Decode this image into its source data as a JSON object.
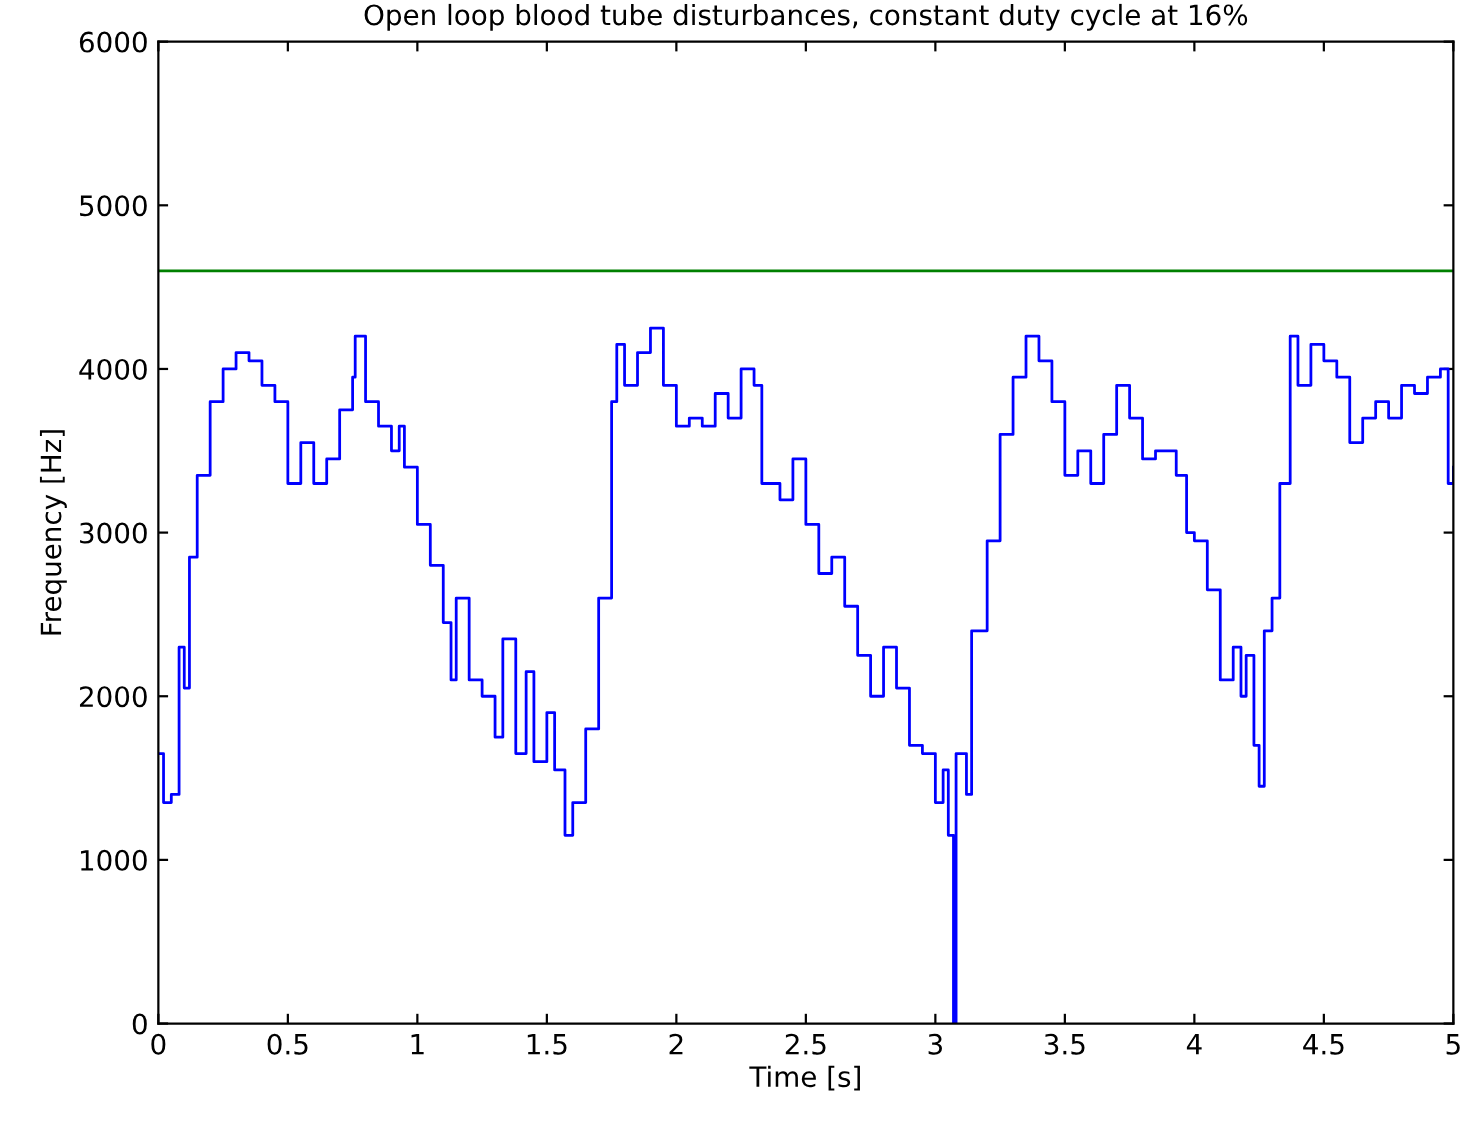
{
  "chart_data": {
    "type": "step",
    "title": "Open loop blood tube disturbances, constant duty cycle at 16%",
    "xlabel": "Time [s]",
    "ylabel": "Frequency [Hz]",
    "x": [
      0,
      0.02,
      0.05,
      0.08,
      0.1,
      0.12,
      0.15,
      0.2,
      0.25,
      0.3,
      0.35,
      0.4,
      0.45,
      0.5,
      0.55,
      0.6,
      0.65,
      0.7,
      0.75,
      0.76,
      0.8,
      0.85,
      0.9,
      0.93,
      0.95,
      1.0,
      1.05,
      1.1,
      1.13,
      1.15,
      1.2,
      1.25,
      1.3,
      1.33,
      1.38,
      1.42,
      1.45,
      1.5,
      1.53,
      1.57,
      1.6,
      1.65,
      1.7,
      1.75,
      1.77,
      1.8,
      1.85,
      1.9,
      1.95,
      2.0,
      2.05,
      2.1,
      2.15,
      2.2,
      2.25,
      2.3,
      2.33,
      2.4,
      2.45,
      2.5,
      2.55,
      2.6,
      2.65,
      2.7,
      2.75,
      2.8,
      2.85,
      2.9,
      2.95,
      3.0,
      3.03,
      3.05,
      3.07,
      3.08,
      3.12,
      3.14,
      3.2,
      3.25,
      3.3,
      3.35,
      3.4,
      3.45,
      3.5,
      3.55,
      3.6,
      3.65,
      3.7,
      3.75,
      3.8,
      3.85,
      3.9,
      3.93,
      3.97,
      4.0,
      4.05,
      4.1,
      4.15,
      4.18,
      4.2,
      4.23,
      4.25,
      4.27,
      4.3,
      4.33,
      4.37,
      4.4,
      4.45,
      4.5,
      4.55,
      4.6,
      4.65,
      4.7,
      4.75,
      4.8,
      4.85,
      4.9,
      4.95,
      4.98,
      5.0
    ],
    "series": [
      {
        "color": "#0000ff",
        "values": [
          1650,
          1350,
          1400,
          2300,
          2050,
          2850,
          3350,
          3800,
          4000,
          4100,
          4050,
          3900,
          3800,
          3300,
          3550,
          3300,
          3450,
          3750,
          3950,
          4200,
          3800,
          3650,
          3500,
          3650,
          3400,
          3050,
          2800,
          2450,
          2100,
          2600,
          2100,
          2000,
          1750,
          2350,
          1650,
          2150,
          1600,
          1900,
          1550,
          1150,
          1350,
          1800,
          2600,
          3800,
          4150,
          3900,
          4100,
          4250,
          3900,
          3650,
          3700,
          3650,
          3850,
          3700,
          4000,
          3900,
          3300,
          3200,
          3450,
          3050,
          2750,
          2850,
          2550,
          2250,
          2000,
          2300,
          2050,
          1700,
          1650,
          1350,
          1550,
          1150,
          0,
          1650,
          1400,
          2400,
          2950,
          3600,
          3950,
          4200,
          4050,
          3800,
          3350,
          3500,
          3300,
          3600,
          3900,
          3700,
          3450,
          3500,
          3500,
          3350,
          3000,
          2950,
          2650,
          2100,
          2300,
          2000,
          2250,
          1700,
          1450,
          2400,
          2600,
          3300,
          4200,
          3900,
          4150,
          4050,
          3950,
          3550,
          3700,
          3800,
          3700,
          3900,
          3850,
          3950,
          4000,
          3300,
          3400
        ]
      }
    ],
    "ref_lines": [
      {
        "axis": "y",
        "value": 4600,
        "color": "#008000"
      }
    ],
    "xlim": [
      0,
      5
    ],
    "ylim": [
      0,
      6000
    ],
    "xticks": [
      0,
      0.5,
      1,
      1.5,
      2,
      2.5,
      3,
      3.5,
      4,
      4.5,
      5
    ],
    "yticks": [
      0,
      1000,
      2000,
      3000,
      4000,
      5000,
      6000
    ],
    "grid": false
  }
}
